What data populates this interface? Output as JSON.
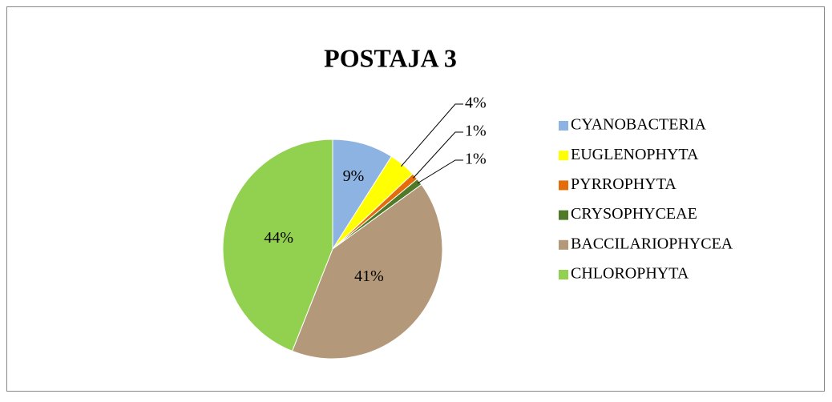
{
  "chart_data": {
    "type": "pie",
    "title": "POSTAJA 3",
    "categories": [
      "CYANOBACTERIA",
      "EUGLENOPHYTA",
      "PYRROPHYTA",
      "CRYSOPHYCEAE",
      "BACCILARIOPHYCEA",
      "CHLOROPHYTA"
    ],
    "values": [
      9,
      4,
      1,
      1,
      41,
      44
    ],
    "value_labels": [
      "9%",
      "4%",
      "1%",
      "1%",
      "41%",
      "44%"
    ],
    "colors": [
      "#8db3e2",
      "#ffff00",
      "#e46c0a",
      "#4f7a28",
      "#b3987a",
      "#92d050"
    ],
    "legend": "right"
  }
}
